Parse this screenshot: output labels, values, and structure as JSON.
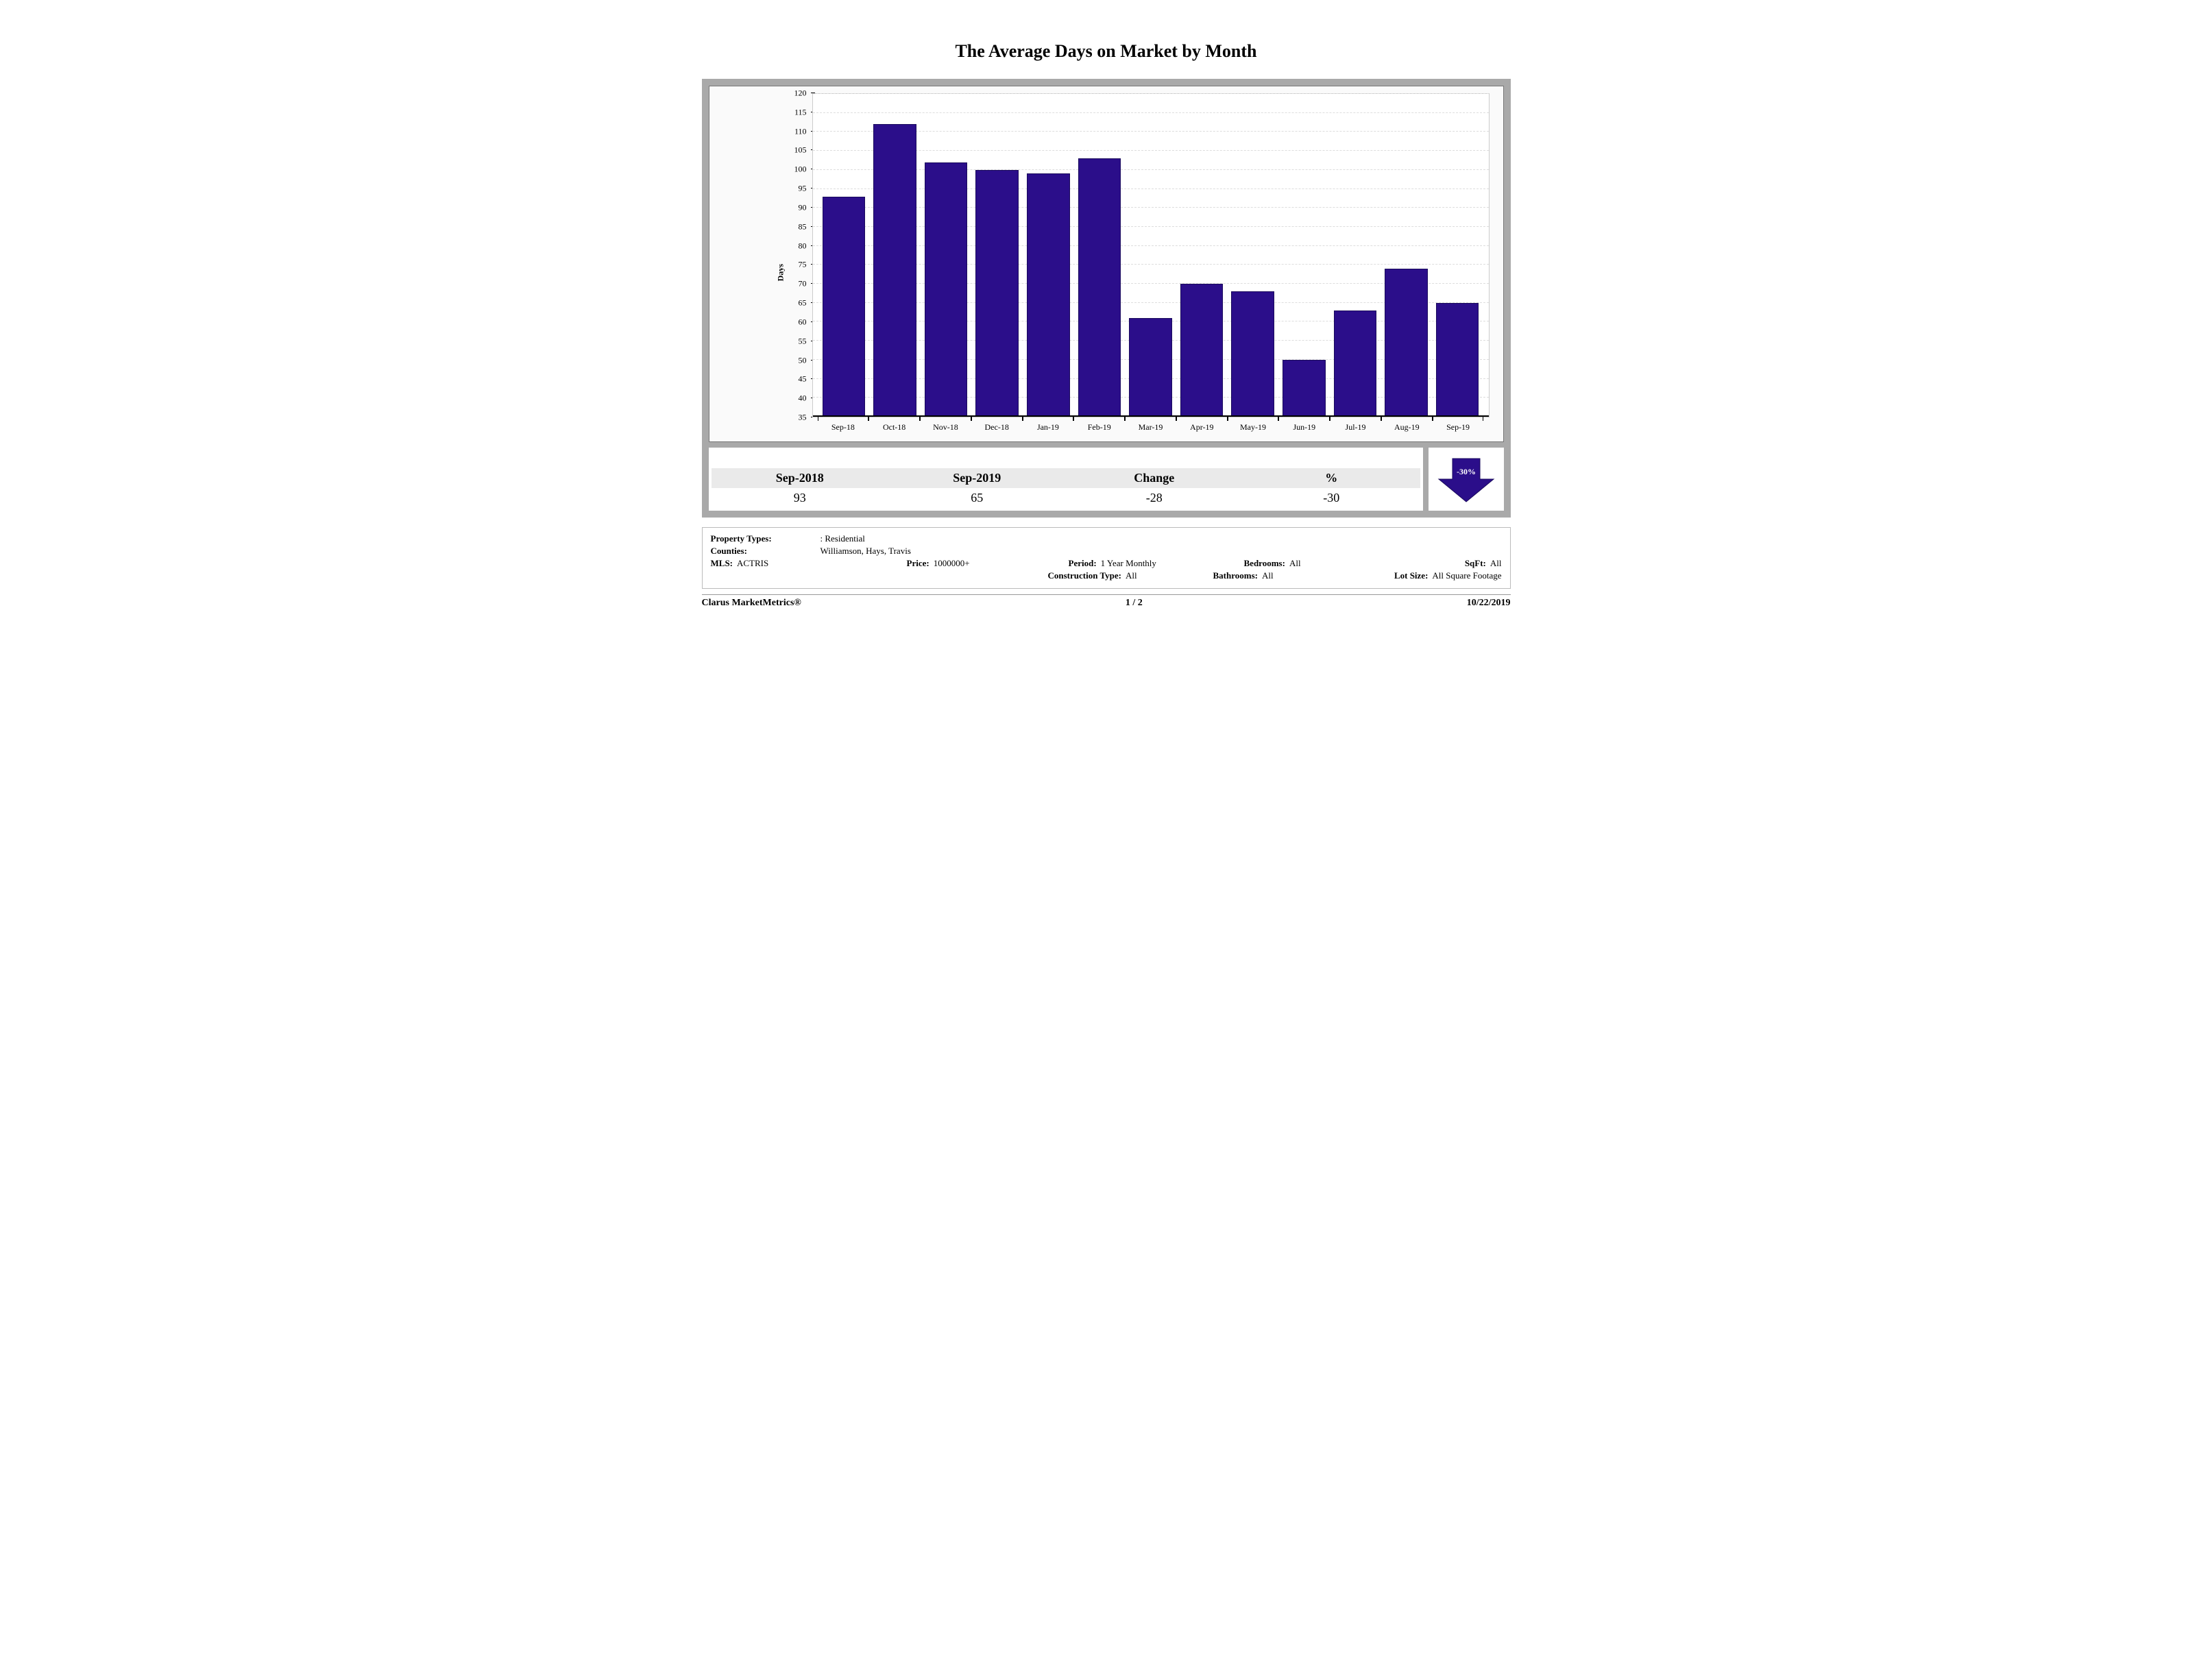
{
  "title": "The Average Days on Market by Month",
  "chart": {
    "type": "bar",
    "ylabel": "Days",
    "ylim": [
      35,
      120
    ],
    "ytick_step": 5,
    "bar_color": "#2b0e8a",
    "bar_border_color": "#1a0a5c",
    "background_color": "#ffffff",
    "panel_background": "#fafafa",
    "frame_background": "#a9a9a9",
    "grid_color": "#dddddd",
    "label_fontsize": 12,
    "categories": [
      "Sep-18",
      "Oct-18",
      "Nov-18",
      "Dec-18",
      "Jan-19",
      "Feb-19",
      "Mar-19",
      "Apr-19",
      "May-19",
      "Jun-19",
      "Jul-19",
      "Aug-19",
      "Sep-19"
    ],
    "values": [
      93,
      112,
      102,
      100,
      99,
      103,
      61,
      70,
      68,
      50,
      63,
      74,
      65
    ]
  },
  "summary": {
    "headers": [
      "Sep-2018",
      "Sep-2019",
      "Change",
      "%"
    ],
    "values": [
      "93",
      "65",
      "-28",
      "-30"
    ],
    "arrow_label": "-30%",
    "arrow_color": "#2b0e8a",
    "arrow_direction": "down"
  },
  "filters": {
    "property_types_label": "Property Types:",
    "property_types_value": ": Residential",
    "counties_label": "Counties:",
    "counties_value": "Williamson, Hays, Travis",
    "mls_label": "MLS:",
    "mls_value": "ACTRIS",
    "price_label": "Price:",
    "price_value": "1000000+",
    "period_label": "Period:",
    "period_value": "1 Year Monthly",
    "bedrooms_label": "Bedrooms:",
    "bedrooms_value": "All",
    "sqft_label": "SqFt:",
    "sqft_value": "All",
    "construction_label": "Construction Type:",
    "construction_value": "All",
    "bathrooms_label": "Bathrooms:",
    "bathrooms_value": "All",
    "lotsize_label": "Lot Size:",
    "lotsize_value": "All Square Footage"
  },
  "footer": {
    "brand": "Clarus MarketMetrics®",
    "page": "1 / 2",
    "date": "10/22/2019"
  }
}
